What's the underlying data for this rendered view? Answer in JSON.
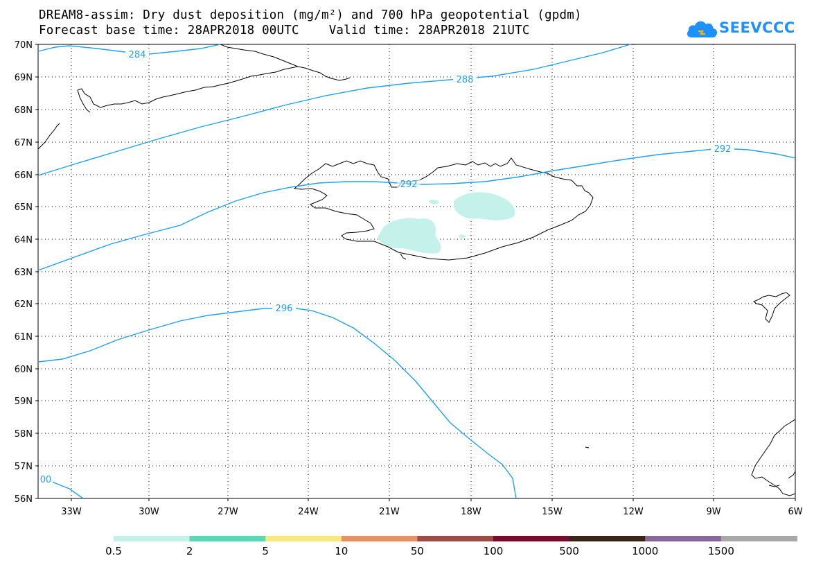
{
  "header": {
    "title_line1": "DREAM8-assim: Dry dust deposition (mg/m²) and 700 hPa geopotential (gpdm)",
    "title_line2": "Forecast base time: 28APR2018 00UTC    Valid time: 28APR2018 21UTC"
  },
  "logo": {
    "text": "SEEVCCC",
    "icon": "cloud-icon",
    "color": "#1e90ff"
  },
  "map": {
    "lat_labels": [
      "70N",
      "69N",
      "68N",
      "67N",
      "66N",
      "65N",
      "64N",
      "63N",
      "62N",
      "61N",
      "60N",
      "59N",
      "58N",
      "57N",
      "56N"
    ],
    "lon_labels": [
      "33W",
      "30W",
      "27W",
      "24W",
      "21W",
      "18W",
      "15W",
      "12W",
      "9W",
      "6W"
    ],
    "contour_color": "#1e9fef",
    "contour_labels": [
      "284",
      "288",
      "292",
      "292",
      "292",
      "296",
      "00"
    ],
    "dust_fill_color": "#c4f1ea"
  },
  "legend": {
    "colors": [
      "#c4f1ea",
      "#5ad8b6",
      "#f9e87a",
      "#ea9065",
      "#a04a45",
      "#7a0a2e",
      "#3a2418",
      "#8a679a",
      "#a8a8a8"
    ],
    "labels": [
      "0.5",
      "2",
      "5",
      "10",
      "50",
      "100",
      "500",
      "1000",
      "1500"
    ]
  }
}
